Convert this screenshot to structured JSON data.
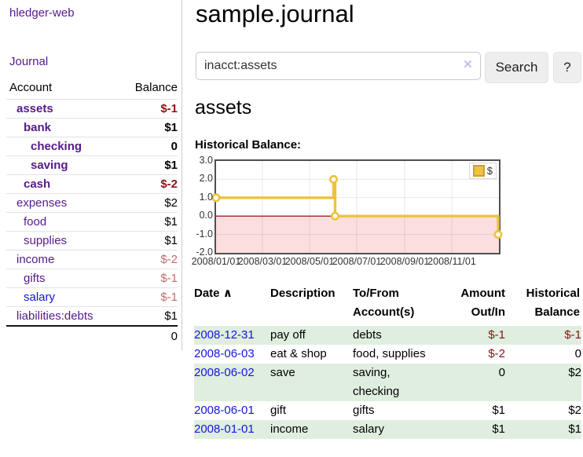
{
  "colors": {
    "accent_purple": "#551a8b",
    "link_blue": "#1515dd",
    "negative_strong": "#8d1212",
    "negative_muted": "#c06c6c",
    "row_green": "#dfeedf",
    "chart_gold": "#edc240",
    "chart_negative_bg": "#fbdede",
    "chart_zero_line": "#8b0000"
  },
  "sidebar": {
    "brand": "hledger-web",
    "nav": {
      "journal": "Journal"
    },
    "table_header": {
      "account": "Account",
      "balance": "Balance"
    },
    "accounts": [
      {
        "name": "assets",
        "balance": "$-1",
        "depth": 1,
        "bold": true,
        "balance_style": "neg-strong"
      },
      {
        "name": "bank",
        "balance": "$1",
        "depth": 2,
        "bold": true,
        "balance_style": "plain"
      },
      {
        "name": "checking",
        "balance": "0",
        "depth": 3,
        "bold": true,
        "balance_style": "plain"
      },
      {
        "name": "saving",
        "balance": "$1",
        "depth": 3,
        "bold": true,
        "balance_style": "plain"
      },
      {
        "name": "cash",
        "balance": "$-2",
        "depth": 2,
        "bold": true,
        "balance_style": "neg-strong"
      },
      {
        "name": "expenses",
        "balance": "$2",
        "depth": 1,
        "bold": false,
        "balance_style": "plain"
      },
      {
        "name": "food",
        "balance": "$1",
        "depth": 2,
        "bold": false,
        "balance_style": "plain"
      },
      {
        "name": "supplies",
        "balance": "$1",
        "depth": 2,
        "bold": false,
        "balance_style": "plain"
      },
      {
        "name": "income",
        "balance": "$-2",
        "depth": 1,
        "bold": false,
        "balance_style": "neg-muted"
      },
      {
        "name": "gifts",
        "balance": "$-1",
        "depth": 2,
        "bold": false,
        "balance_style": "neg-muted"
      },
      {
        "name": "salary",
        "balance": "$-1",
        "depth": 2,
        "bold": false,
        "balance_style": "neg-muted",
        "link_style": "blue"
      },
      {
        "name": "liabilities:debts",
        "balance": "$1",
        "depth": 1,
        "bold": false,
        "balance_style": "plain"
      }
    ],
    "total": "0"
  },
  "header": {
    "title": "sample.journal"
  },
  "search": {
    "value": "inacct:assets",
    "clear_icon": "×",
    "search_button": "Search",
    "help_button": "?"
  },
  "account_page": {
    "heading": "assets",
    "chart_title": "Historical Balance:"
  },
  "chart_data": {
    "type": "line",
    "style": "step-after",
    "title": "Historical Balance",
    "legend": [
      {
        "label": "$",
        "color": "#edc240"
      }
    ],
    "legend_position": "top-right",
    "grid": true,
    "x_start": "2008-01-01",
    "x_end": "2009-01-01",
    "xticks": [
      "2008/01/01",
      "2008/03/01",
      "2008/05/01",
      "2008/07/01",
      "2008/09/01",
      "2008/11/01"
    ],
    "yticks": [
      3.0,
      2.0,
      1.0,
      0.0,
      -1.0,
      -2.0
    ],
    "ylim": [
      -2,
      3
    ],
    "series": [
      {
        "name": "$",
        "color": "#edc240",
        "points": [
          {
            "date": "2008-01-01",
            "value": 1
          },
          {
            "date": "2008-06-01",
            "value": 2
          },
          {
            "date": "2008-06-03",
            "value": 0
          },
          {
            "date": "2008-12-31",
            "value": -1
          }
        ]
      }
    ],
    "negative_region_color": "#fbdede",
    "zero_line_color": "#8b0000"
  },
  "register": {
    "columns": {
      "date": "Date",
      "sort_icon": "∧",
      "description": "Description",
      "accounts_l1": "To/From",
      "accounts_l2": "Account(s)",
      "amount_l1": "Amount",
      "amount_l2": "Out/In",
      "balance_l1": "Historical",
      "balance_l2": "Balance"
    },
    "rows": [
      {
        "date": "2008-12-31",
        "description": "pay off",
        "accounts": "debts",
        "amount": "$-1",
        "amount_negative": true,
        "balance": "$-1",
        "balance_negative": true
      },
      {
        "date": "2008-06-03",
        "description": "eat & shop",
        "accounts": "food, supplies",
        "amount": "$-2",
        "amount_negative": true,
        "balance": "0",
        "balance_negative": false
      },
      {
        "date": "2008-06-02",
        "description": "save",
        "accounts": "saving,\nchecking",
        "amount": "0",
        "amount_negative": false,
        "balance": "$2",
        "balance_negative": false
      },
      {
        "date": "2008-06-01",
        "description": "gift",
        "accounts": "gifts",
        "amount": "$1",
        "amount_negative": false,
        "balance": "$2",
        "balance_negative": false
      },
      {
        "date": "2008-01-01",
        "description": "income",
        "accounts": "salary",
        "amount": "$1",
        "amount_negative": false,
        "balance": "$1",
        "balance_negative": false
      }
    ]
  }
}
